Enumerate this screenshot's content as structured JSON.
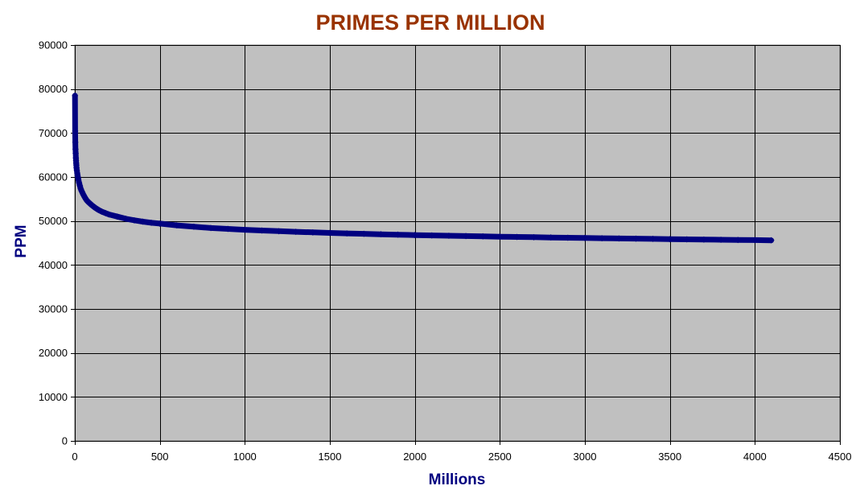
{
  "chart_data": {
    "type": "scatter",
    "title": "PRIMES PER MILLION",
    "xlabel": "Millions",
    "ylabel": "PPM",
    "xlim": [
      0,
      4500
    ],
    "ylim": [
      0,
      90000
    ],
    "x_ticks": [
      "0",
      "500",
      "1000",
      "1500",
      "2000",
      "2500",
      "3000",
      "3500",
      "4000",
      "4500"
    ],
    "y_ticks": [
      "0",
      "10000",
      "20000",
      "30000",
      "40000",
      "50000",
      "60000",
      "70000",
      "80000",
      "90000"
    ],
    "x_tick_values": [
      0,
      500,
      1000,
      1500,
      2000,
      2500,
      3000,
      3500,
      4000,
      4500
    ],
    "y_tick_values": [
      0,
      10000,
      20000,
      30000,
      40000,
      50000,
      60000,
      70000,
      80000,
      90000
    ],
    "grid": true,
    "legend": "none",
    "series": [
      {
        "x": [
          1,
          2,
          3,
          4,
          5,
          6,
          7,
          8,
          9,
          10,
          12,
          14,
          16,
          18,
          20,
          25,
          30,
          35,
          40,
          50,
          60,
          70,
          80,
          100,
          120,
          140,
          160,
          180,
          200,
          250,
          300,
          350,
          400,
          450,
          500,
          600,
          700,
          800,
          900,
          1000,
          1100,
          1200,
          1300,
          1400,
          1500,
          1600,
          1700,
          1800,
          1900,
          2000,
          2100,
          2200,
          2300,
          2400,
          2500,
          2600,
          2700,
          2800,
          2900,
          3000,
          3100,
          3200,
          3300,
          3400,
          3500,
          3600,
          3700,
          3800,
          3900,
          4000,
          4096
        ],
        "y": [
          78498,
          70435,
          67883,
          66330,
          65367,
          64336,
          63799,
          63129,
          62712,
          62090,
          61500,
          60900,
          60400,
          60000,
          59600,
          58700,
          58000,
          57300,
          56800,
          56000,
          55300,
          54700,
          54300,
          53600,
          53000,
          52500,
          52100,
          51800,
          51500,
          51000,
          50500,
          50150,
          49850,
          49600,
          49400,
          49000,
          48700,
          48400,
          48200,
          48000,
          47830,
          47680,
          47540,
          47410,
          47290,
          47180,
          47080,
          46980,
          46890,
          46800,
          46720,
          46640,
          46570,
          46500,
          46430,
          46370,
          46310,
          46250,
          46190,
          46140,
          46080,
          46030,
          45980,
          45930,
          45880,
          45830,
          45780,
          45740,
          45690,
          45650,
          45610
        ]
      }
    ],
    "colors": {
      "plot_background": "#C0C0C0",
      "gridline": "#000000",
      "marker": "#000080",
      "title": "#993300",
      "axis_title": "#000080"
    }
  }
}
